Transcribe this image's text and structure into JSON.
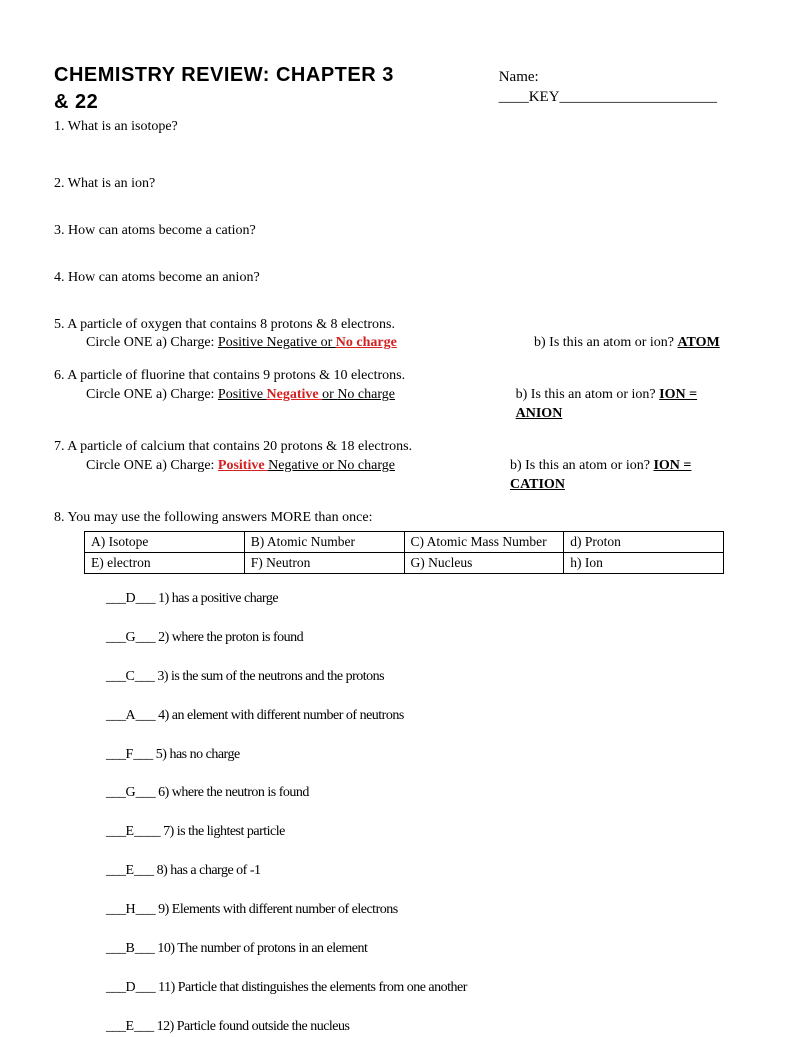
{
  "header": {
    "title": "Chemistry Review: Chapter 3 & 22",
    "name_label": "Name: ____KEY_____________________"
  },
  "q1": "1. What is an isotope?",
  "q2": "2. What is an ion?",
  "q3": "3. How can atoms become a cation?",
  "q4": "4. How can atoms become an anion?",
  "q5": {
    "text": "5. A particle of oxygen that contains 8 protons & 8 electrons.",
    "circle": "Circle ONE   a)  Charge: ",
    "opt_pos": "Positive   ",
    "opt_neg": "Negative   ",
    "or": "or   ",
    "opt_none": "No charge",
    "b": "b) Is this an atom or ion?   ",
    "ans": "ATOM"
  },
  "q6": {
    "text": "6. A particle of fluorine that contains 9 protons & 10 electrons.",
    "circle": "Circle ONE   a)  Charge: ",
    "opt_pos": "Positive   ",
    "opt_neg": "Negative   ",
    "or": "or   ",
    "opt_none": "No charge",
    "b": "b) Is this an atom or ion?   ",
    "ans": "ION = ANION"
  },
  "q7": {
    "text": "7. A particle of calcium that contains 20 protons & 18 electrons.",
    "circle": "Circle ONE   a)  Charge: ",
    "opt_pos": "Positive   ",
    "opt_neg": "Negative   ",
    "or": "or   ",
    "opt_none": "No charge",
    "b": "b) Is this an atom or ion?   ",
    "ans": "ION = CATION"
  },
  "q8": {
    "intro": "8. You may use the following answers MORE than once:",
    "table": {
      "r1c1": "A) Isotope",
      "r1c2": "B) Atomic Number",
      "r1c3": "C) Atomic Mass Number",
      "r1c4": "d) Proton",
      "r2c1": "E) electron",
      "r2c2": "F) Neutron",
      "r2c3": "G) Nucleus",
      "r2c4": "h)  Ion"
    },
    "items": [
      {
        "pre": "___",
        "letter": "D",
        "post": "___  1) has a positive charge"
      },
      {
        "pre": "___",
        "letter": "G",
        "post": "___  2) where the proton is found"
      },
      {
        "pre": "___",
        "letter": "C",
        "post": "___  3) is the sum of the neutrons and the protons"
      },
      {
        "pre": "___",
        "letter": "A",
        "post": "___  4) an element with different number of neutrons"
      },
      {
        "pre": "___",
        "letter": "F",
        "post": "___  5) has no charge"
      },
      {
        "pre": "___",
        "letter": "G",
        "post": "___  6) where the neutron is found"
      },
      {
        "pre": "___",
        "letter": "E",
        "post": "____  7) is the lightest particle"
      },
      {
        "pre": "___",
        "letter": "E",
        "post": "___  8) has a charge of -1"
      },
      {
        "pre": "___",
        "letter": "H",
        "post": "___  9) Elements with different number of electrons"
      },
      {
        "pre": "___",
        "letter": "B",
        "post": "___  10) The number of protons in an element"
      },
      {
        "pre": "___",
        "letter": "D",
        "post": "___  11) Particle that distinguishes the elements from one another"
      },
      {
        "pre": "___",
        "letter": "E",
        "post": "___  12) Particle found outside the nucleus"
      }
    ]
  }
}
